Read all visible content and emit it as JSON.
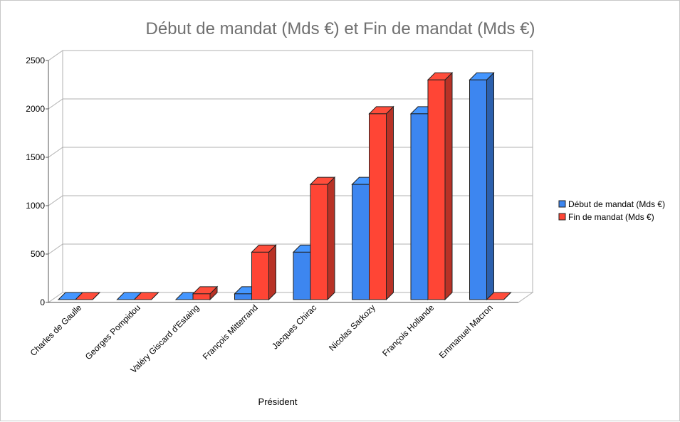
{
  "chart_data": {
    "type": "bar",
    "title": "Début de mandat (Mds €) et Fin de mandat (Mds €)",
    "xlabel": "Président",
    "ylabel": "",
    "ylim": [
      0,
      2500
    ],
    "yticks": [
      0,
      500,
      1000,
      1500,
      2000,
      2500
    ],
    "grid": true,
    "legend_position": "right",
    "categories": [
      "Charles de Gaulle",
      "Georges Pompidou",
      "Valéry Giscard d'Estaing",
      "François Mitterrand",
      "Jacques Chirac",
      "Nicolas Sarkozy",
      "François Hollande",
      "Emmanuel Macron"
    ],
    "series": [
      {
        "name": "Début de mandat (Mds €)",
        "color": "#3d86f0",
        "values": [
          0,
          0,
          0,
          60,
          490,
          1190,
          1920,
          2270
        ]
      },
      {
        "name": "Fin de mandat (Mds €)",
        "color": "#ff4535",
        "values": [
          0,
          0,
          60,
          490,
          1190,
          1920,
          2270,
          0
        ]
      }
    ]
  }
}
